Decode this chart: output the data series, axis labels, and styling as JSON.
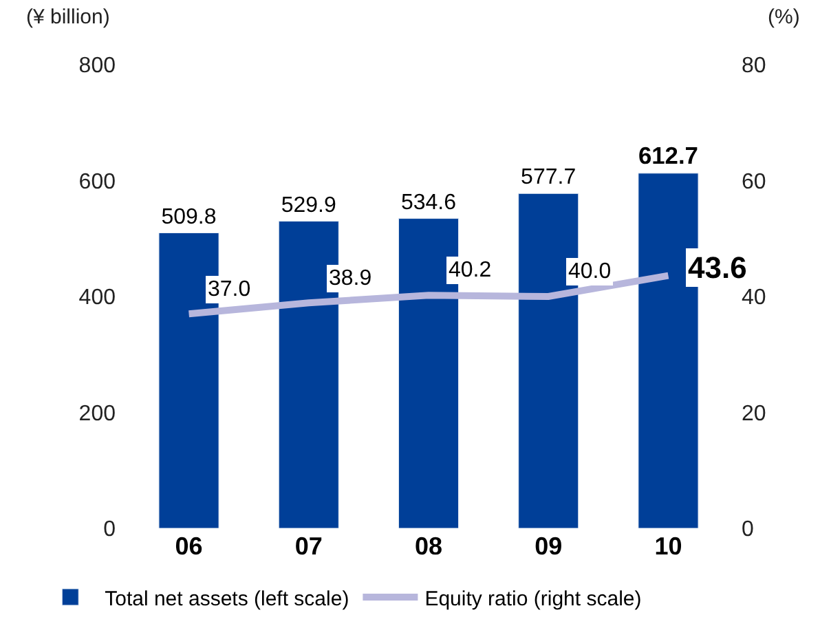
{
  "chart_data": {
    "type": "bar",
    "ylabel": "(¥ billion)",
    "y2label": "(%)",
    "categories": [
      "06",
      "07",
      "08",
      "09",
      "10"
    ],
    "series": [
      {
        "name": "Total net assets (left scale)",
        "color": "#003f98",
        "values": [
          509.8,
          529.9,
          534.6,
          577.7,
          612.7
        ],
        "value_labels": [
          "509.8",
          "529.9",
          "534.6",
          "577.7",
          "612.7"
        ]
      },
      {
        "name": "Equity ratio (right scale)",
        "type": "line",
        "axis": "y2",
        "color": "#b7b6dc",
        "values": [
          37.0,
          38.9,
          40.2,
          40.0,
          43.6
        ],
        "value_labels": [
          "37.0",
          "38.9",
          "40.2",
          "40.0",
          "43.6"
        ],
        "marker": "none",
        "line_style": "solid"
      }
    ],
    "ylim": [
      0,
      800
    ],
    "yticks": [
      0,
      200,
      400,
      600,
      800
    ],
    "y2lim": [
      0,
      80
    ],
    "y2ticks": [
      0,
      20,
      40,
      60,
      80
    ],
    "legend": "bottom"
  }
}
